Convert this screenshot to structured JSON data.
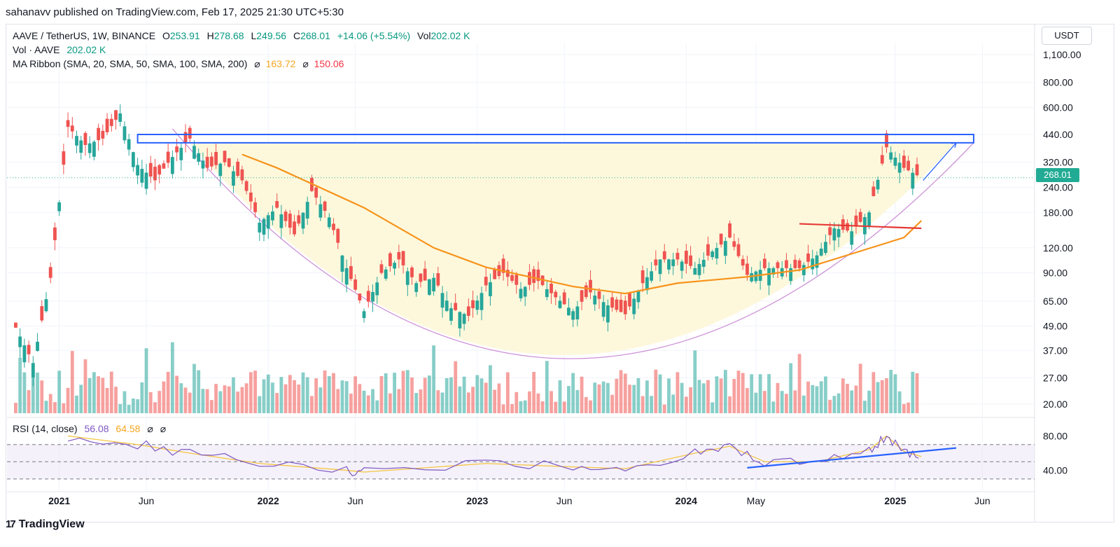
{
  "header": {
    "publish_line": "sahanavv published on TradingView.com, Feb 17, 2025 21:30 UTC+5:30"
  },
  "legend": {
    "symbol": "AAVE / TetherUS, 1W, BINANCE",
    "o_label": "O",
    "o_value": "253.91",
    "h_label": "H",
    "h_value": "278.68",
    "l_label": "L",
    "l_value": "249.56",
    "c_label": "C",
    "c_value": "268.01",
    "change": "+14.06 (+5.54%)",
    "vol_label": "Vol",
    "vol_value": "202.02 K",
    "vol_row_label": "Vol · AAVE",
    "vol_row_value": "202.02 K",
    "ma_label": "MA Ribbon (SMA, 20, SMA, 50, SMA, 100, SMA, 200)",
    "ma_symbol": "⌀",
    "ma_value_1": "163.72",
    "ma_value_2": "150.06"
  },
  "rsi_legend": {
    "label": "RSI (14, close)",
    "value_1": "56.08",
    "value_2": "64.58",
    "symbol": "⌀"
  },
  "axis": {
    "currency": "USDT",
    "last_price": "268.01"
  },
  "footer": {
    "brand": "TradingView",
    "logo_glyph": "17"
  },
  "colors": {
    "up": "#26a69a",
    "down": "#ef5350",
    "ma": "#f7931a",
    "rsi_line": "#7e57c2",
    "rsi_ma": "#f5c542",
    "bowl_fill": "#fdf8dc",
    "box_stroke": "#2962ff",
    "trend_blue": "#2962ff",
    "red_line": "#e53935"
  },
  "chart_data": {
    "type": "candlestick",
    "title": "AAVE / TetherUS, 1W, BINANCE",
    "y_scale": "log",
    "ylim": [
      18,
      1250
    ],
    "y_ticks": [
      "20.00",
      "27.00",
      "37.00",
      "49.00",
      "65.00",
      "90.00",
      "120.00",
      "180.00",
      "240.00",
      "320.00",
      "440.00",
      "600.00",
      "800.00",
      "1,100.00"
    ],
    "y_tick_values": [
      20,
      27,
      37,
      49,
      65,
      90,
      120,
      180,
      240,
      320,
      440,
      600,
      800,
      1100
    ],
    "x_ticks": [
      "2021",
      "Jun",
      "2022",
      "Jun",
      "2023",
      "Jun",
      "2024",
      "May",
      "2025",
      "Jun"
    ],
    "x_tick_dates": [
      "2021-01",
      "2021-06",
      "2022-01",
      "2022-06",
      "2023-01",
      "2023-06",
      "2024-01",
      "2024-05",
      "2025-01",
      "2025-06"
    ],
    "x_range": [
      "2020-10",
      "2025-09"
    ],
    "rsi_ticks": [
      "40.00",
      "80.00"
    ],
    "rsi_tick_values": [
      40,
      80
    ],
    "last_close": 268.01,
    "price_path": [
      {
        "date": "2020-10",
        "close": 48
      },
      {
        "date": "2020-11",
        "close": 32
      },
      {
        "date": "2020-12",
        "close": 85
      },
      {
        "date": "2021-01",
        "close": 480
      },
      {
        "date": "2021-02",
        "close": 390
      },
      {
        "date": "2021-03",
        "close": 420
      },
      {
        "date": "2021-04",
        "close": 560
      },
      {
        "date": "2021-05",
        "close": 310
      },
      {
        "date": "2021-06",
        "close": 260
      },
      {
        "date": "2021-07",
        "close": 340
      },
      {
        "date": "2021-08",
        "close": 420
      },
      {
        "date": "2021-09",
        "close": 300
      },
      {
        "date": "2021-10",
        "close": 320
      },
      {
        "date": "2021-11",
        "close": 260
      },
      {
        "date": "2021-12",
        "close": 160
      },
      {
        "date": "2022-01",
        "close": 190
      },
      {
        "date": "2022-02",
        "close": 140
      },
      {
        "date": "2022-03",
        "close": 230
      },
      {
        "date": "2022-04",
        "close": 170
      },
      {
        "date": "2022-05",
        "close": 95
      },
      {
        "date": "2022-06",
        "close": 58
      },
      {
        "date": "2022-07",
        "close": 90
      },
      {
        "date": "2022-08",
        "close": 105
      },
      {
        "date": "2022-09",
        "close": 80
      },
      {
        "date": "2022-10",
        "close": 85
      },
      {
        "date": "2022-11",
        "close": 60
      },
      {
        "date": "2022-12",
        "close": 55
      },
      {
        "date": "2023-01",
        "close": 78
      },
      {
        "date": "2023-02",
        "close": 90
      },
      {
        "date": "2023-03",
        "close": 75
      },
      {
        "date": "2023-04",
        "close": 82
      },
      {
        "date": "2023-05",
        "close": 68
      },
      {
        "date": "2023-06",
        "close": 58
      },
      {
        "date": "2023-07",
        "close": 72
      },
      {
        "date": "2023-08",
        "close": 62
      },
      {
        "date": "2023-09",
        "close": 56
      },
      {
        "date": "2023-10",
        "close": 80
      },
      {
        "date": "2023-11",
        "close": 105
      },
      {
        "date": "2023-12",
        "close": 105
      },
      {
        "date": "2024-01",
        "close": 95
      },
      {
        "date": "2024-02",
        "close": 115
      },
      {
        "date": "2024-03",
        "close": 135
      },
      {
        "date": "2024-04",
        "close": 88
      },
      {
        "date": "2024-05",
        "close": 95
      },
      {
        "date": "2024-06",
        "close": 95
      },
      {
        "date": "2024-07",
        "close": 95
      },
      {
        "date": "2024-08",
        "close": 110
      },
      {
        "date": "2024-09",
        "close": 150
      },
      {
        "date": "2024-10",
        "close": 145
      },
      {
        "date": "2024-11",
        "close": 180
      },
      {
        "date": "2024-12",
        "close": 380
      },
      {
        "date": "2025-01",
        "close": 300
      },
      {
        "date": "2025-02",
        "close": 268
      }
    ],
    "ma_path": [
      {
        "date": "2021-11",
        "value": 350
      },
      {
        "date": "2022-01",
        "value": 300
      },
      {
        "date": "2022-06",
        "value": 190
      },
      {
        "date": "2022-10",
        "value": 120
      },
      {
        "date": "2023-01",
        "value": 96
      },
      {
        "date": "2023-06",
        "value": 77
      },
      {
        "date": "2023-09",
        "value": 71
      },
      {
        "date": "2023-12",
        "value": 80
      },
      {
        "date": "2024-04",
        "value": 86
      },
      {
        "date": "2024-07",
        "value": 93
      },
      {
        "date": "2024-10",
        "value": 112
      },
      {
        "date": "2025-01",
        "value": 135
      },
      {
        "date": "2025-02",
        "value": 163.72
      }
    ],
    "rsi_path": [
      {
        "date": "2021-01",
        "value": 80
      },
      {
        "date": "2021-05",
        "value": 70
      },
      {
        "date": "2021-08",
        "value": 60
      },
      {
        "date": "2021-12",
        "value": 48
      },
      {
        "date": "2022-05",
        "value": 40
      },
      {
        "date": "2022-06",
        "value": 38
      },
      {
        "date": "2023-01",
        "value": 48
      },
      {
        "date": "2023-06",
        "value": 44
      },
      {
        "date": "2023-09",
        "value": 42
      },
      {
        "date": "2024-01",
        "value": 60
      },
      {
        "date": "2024-03",
        "value": 68
      },
      {
        "date": "2024-05",
        "value": 50
      },
      {
        "date": "2024-08",
        "value": 50
      },
      {
        "date": "2024-11",
        "value": 64
      },
      {
        "date": "2024-12",
        "value": 80
      },
      {
        "date": "2025-01",
        "value": 62
      },
      {
        "date": "2025-02",
        "value": 56.08
      }
    ],
    "resistance_zone": [
      400,
      440
    ],
    "red_support_level": [
      150,
      158
    ]
  }
}
